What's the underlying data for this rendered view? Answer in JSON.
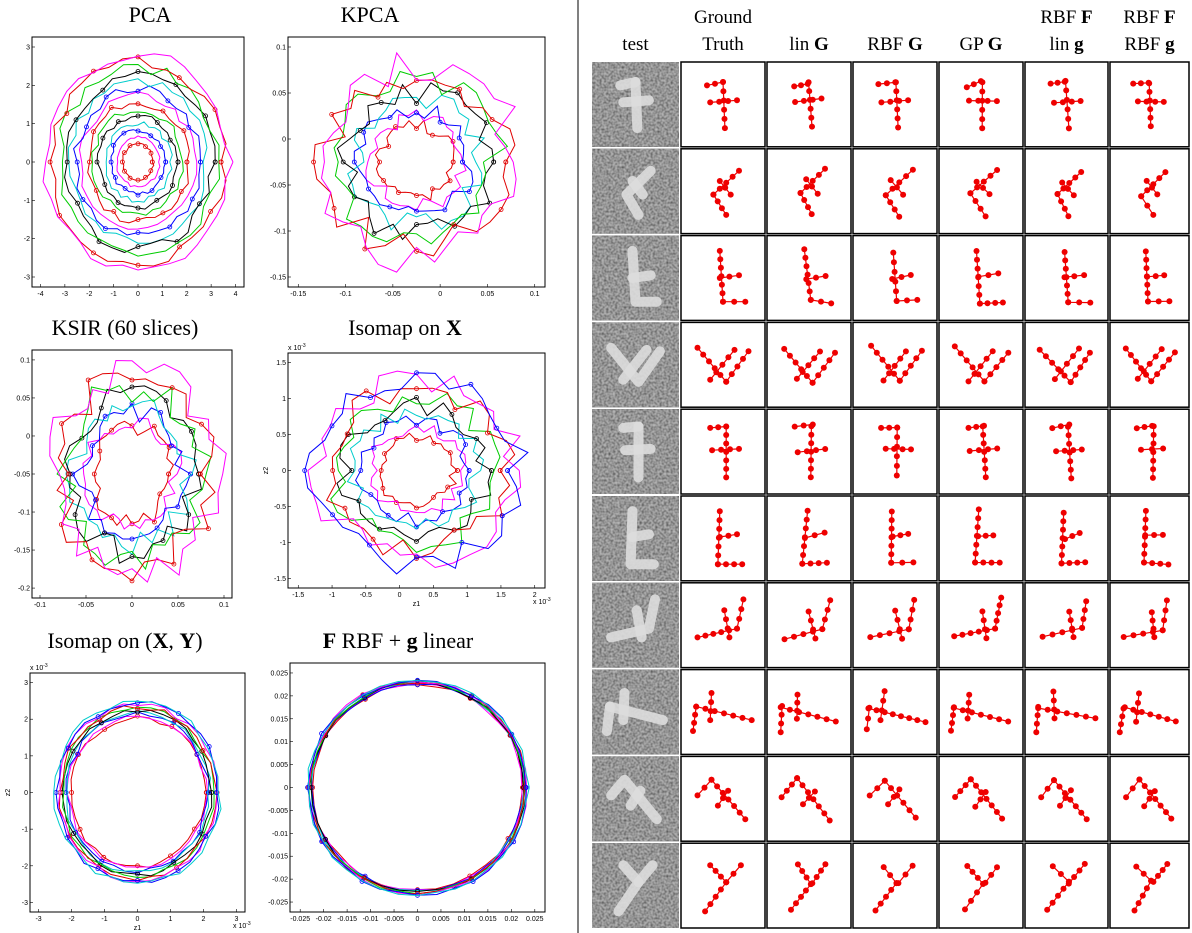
{
  "left_panels": [
    {
      "title": [
        {
          "text": "PCA"
        }
      ],
      "xticks": [
        -4,
        -3,
        -2,
        -1,
        0,
        1,
        2,
        3,
        4
      ],
      "yticks": [
        3,
        2,
        1,
        0,
        -1,
        -2,
        -3
      ]
    },
    {
      "title": [
        {
          "text": "KPCA"
        }
      ],
      "xticks": [
        -0.15,
        -0.1,
        -0.05,
        0,
        0.05,
        0.1
      ],
      "yticks": [
        0.1,
        0.05,
        0,
        -0.05,
        -0.1,
        -0.15
      ]
    },
    {
      "title": [
        {
          "text": "KSIR (60 slices)"
        }
      ],
      "xticks": [
        -0.1,
        -0.05,
        0,
        0.05,
        0.1
      ],
      "yticks": [
        0.1,
        0.05,
        0,
        -0.05,
        -0.1,
        -0.15,
        -0.2
      ]
    },
    {
      "title": [
        {
          "text": "Isomap on "
        },
        {
          "text": "X",
          "bold": true
        }
      ],
      "xticks": [
        -1.5,
        -1,
        -0.5,
        0,
        0.5,
        1,
        1.5,
        2
      ],
      "yticks": [
        1.5,
        1,
        0.5,
        0,
        -0.5,
        -1,
        -1.5
      ],
      "xlabel": "z1",
      "ylabel": "z2",
      "x_multiplier": {
        "base": "x 10",
        "power": "-3"
      },
      "y_multiplier": {
        "base": "x 10",
        "power": "-3"
      }
    },
    {
      "title": [
        {
          "text": "Isomap on ("
        },
        {
          "text": "X",
          "bold": true
        },
        {
          "text": ", "
        },
        {
          "text": "Y",
          "bold": true
        },
        {
          "text": ")"
        }
      ],
      "xticks": [
        -3,
        -2,
        -1,
        0,
        1,
        2,
        3
      ],
      "yticks": [
        3,
        2,
        1,
        0,
        -1,
        -2,
        -3
      ],
      "xlabel": "z1",
      "ylabel": "z2",
      "x_multiplier": {
        "base": "x 10",
        "power": "-3"
      },
      "y_multiplier": {
        "base": "x 10",
        "power": "-3"
      }
    },
    {
      "title": [
        {
          "text": "F",
          "bold": true
        },
        {
          "text": " RBF + "
        },
        {
          "text": "g",
          "bold": true
        },
        {
          "text": " linear"
        }
      ],
      "xticks": [
        -0.025,
        -0.02,
        -0.015,
        -0.01,
        -0.005,
        0,
        0.005,
        0.01,
        0.015,
        0.02,
        0.025
      ],
      "yticks": [
        0.025,
        0.02,
        0.015,
        0.01,
        0.005,
        0,
        -0.005,
        -0.01,
        -0.015,
        -0.02,
        -0.025
      ]
    }
  ],
  "table": {
    "headers": [
      [
        [
          {
            "text": "test"
          }
        ]
      ],
      [
        [
          {
            "text": "Ground"
          }
        ],
        [
          {
            "text": "Truth"
          }
        ]
      ],
      [
        [
          {
            "text": "lin "
          },
          {
            "text": "G",
            "bold": true
          }
        ]
      ],
      [
        [
          {
            "text": "RBF "
          },
          {
            "text": "G",
            "bold": true
          }
        ]
      ],
      [
        [
          {
            "text": "GP "
          },
          {
            "text": "G",
            "bold": true
          }
        ]
      ],
      [
        [
          {
            "text": "RBF "
          },
          {
            "text": "F",
            "bold": true
          }
        ],
        [
          {
            "text": "lin "
          },
          {
            "text": "g",
            "bold": true
          }
        ]
      ],
      [
        [
          {
            "text": "RBF "
          },
          {
            "text": "F",
            "bold": true
          }
        ],
        [
          {
            "text": "RBF "
          },
          {
            "text": "g",
            "bold": true
          }
        ]
      ]
    ]
  }
}
